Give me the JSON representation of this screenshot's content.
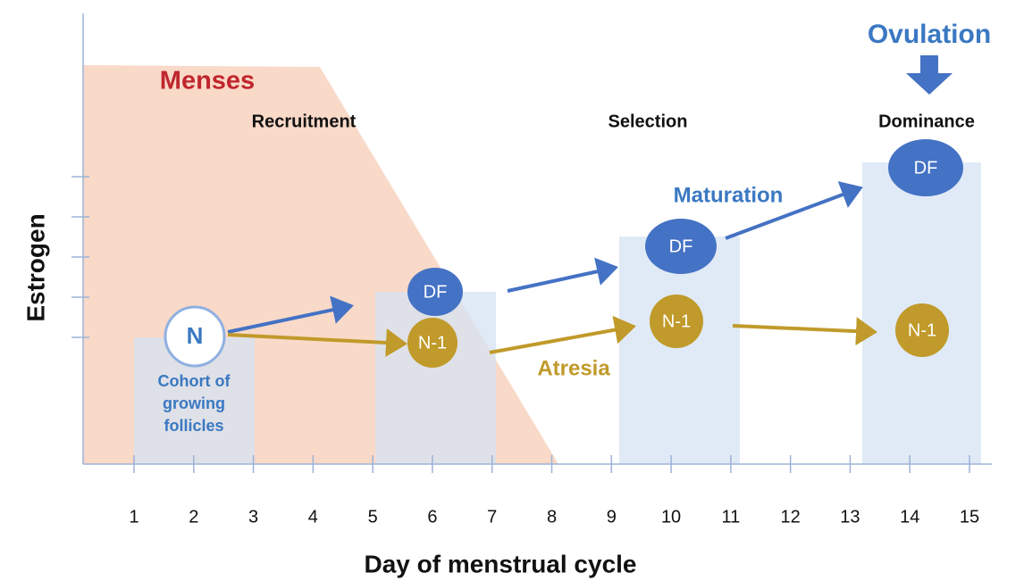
{
  "axes": {
    "y_label": "Estrogen",
    "x_label": "Day of menstrual cycle",
    "days": [
      "1",
      "2",
      "3",
      "4",
      "5",
      "6",
      "7",
      "8",
      "9",
      "10",
      "11",
      "12",
      "13",
      "14",
      "15"
    ]
  },
  "phases": {
    "menses": "Menses",
    "recruitment": "Recruitment",
    "selection": "Selection",
    "dominance": "Dominance",
    "ovulation": "Ovulation"
  },
  "follicles": {
    "cohort": "N",
    "cohort_caption": [
      "Cohort of",
      "growing",
      "follicles"
    ],
    "dominant": [
      "DF",
      "DF",
      "DF"
    ],
    "subordinate": [
      "N-1",
      "N-1",
      "N-1"
    ]
  },
  "processes": {
    "maturation": "Maturation",
    "atresia": "Atresia"
  }
}
